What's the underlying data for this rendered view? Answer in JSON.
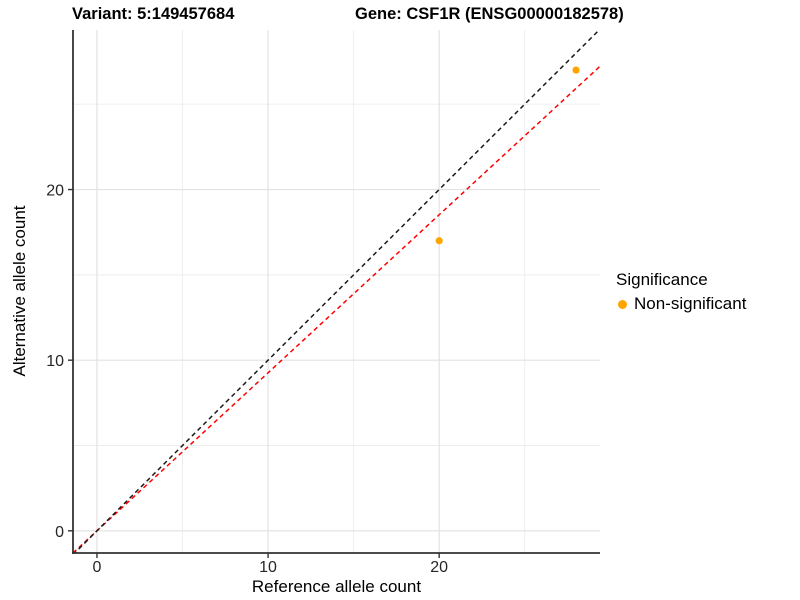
{
  "chart_data": {
    "type": "scatter",
    "title_parts": {
      "variant": "Variant: 5:149457684",
      "gene": "Gene: CSF1R (ENSG00000182578)"
    },
    "xlabel": "Reference allele count",
    "ylabel": "Alternative allele count",
    "xlim": [
      -1.4,
      29.4
    ],
    "ylim": [
      -1.3,
      29.35
    ],
    "xticks": [
      0,
      10,
      20
    ],
    "yticks": [
      0,
      10,
      20
    ],
    "xticks_minor": [
      5,
      15,
      25
    ],
    "yticks_minor": [
      5,
      15,
      25
    ],
    "grid": true,
    "points": [
      {
        "x": 20,
        "y": 17,
        "series": "Non-significant"
      },
      {
        "x": 28,
        "y": 27,
        "series": "Non-significant"
      }
    ],
    "point_color": "#FFA500",
    "lines": [
      {
        "name": "identity-line",
        "slope": 1,
        "intercept": 0,
        "color": "#1a1a1a",
        "style": "dashed"
      },
      {
        "name": "fit-line",
        "slope": 0.926,
        "intercept": 0,
        "color": "#ff0000",
        "style": "dashed"
      }
    ],
    "legend": {
      "title": "Significance",
      "position": "right",
      "entries": [
        {
          "label": "Non-significant",
          "color": "#FFA500"
        }
      ]
    },
    "colors": {
      "axis_line": "#333333",
      "tick_label": "#262626",
      "grid_major": "#e2e2e2",
      "grid_minor": "#ededed",
      "background": "#ffffff"
    }
  }
}
